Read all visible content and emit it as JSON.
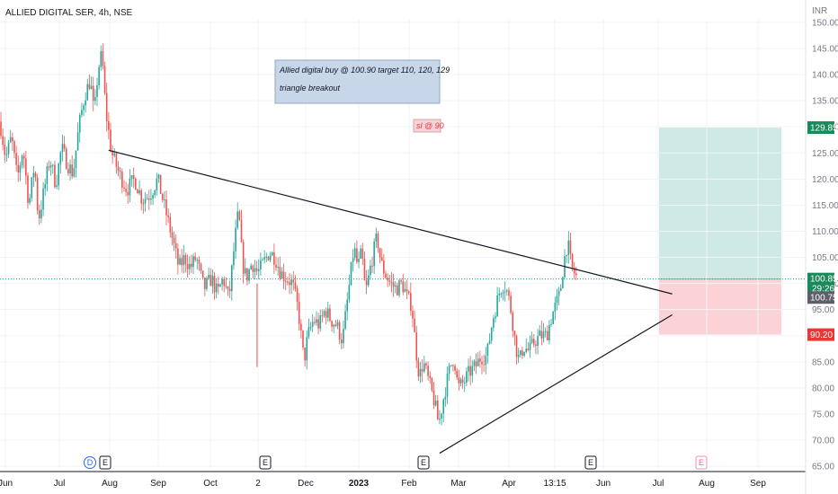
{
  "symbol_title": "ALLIED DIGITAL SER, 4h, NSE",
  "currency": "INR",
  "colors": {
    "up": "#26a69a",
    "down": "#ef5350",
    "trendline": "#131722",
    "target_zone": "#cfe9e5",
    "stop_zone": "#fbd3d6",
    "note_bg": "#c8d6ea",
    "note_border": "#8fa8c8",
    "tag_target": "#1b8a5a",
    "tag_stop": "#e53935",
    "tag_price": "#1b8a5a",
    "tag_close": "#5d606b"
  },
  "chart_data": {
    "type": "candlestick",
    "interval": "4h",
    "ylim": [
      65,
      150
    ],
    "y_ticks": [
      65,
      70,
      75,
      80,
      85,
      90,
      95,
      100,
      105,
      110,
      115,
      120,
      125,
      130,
      135,
      140,
      145,
      150
    ],
    "y_tick_labels": [
      "65.00",
      "70.00",
      "75.00",
      "80.00",
      "85.00",
      "90.00",
      "95.00",
      "100.00",
      "105.00",
      "110.00",
      "115.00",
      "120.00",
      "125.00",
      "130.00",
      "135.00",
      "140.00",
      "145.00",
      "150.00"
    ],
    "x_tick_labels": [
      "Jun",
      "Jul",
      "Aug",
      "Sep",
      "Oct",
      "2",
      "Dec",
      "2023",
      "Feb",
      "Mar",
      "Apr",
      "13:15",
      "Jun",
      "Jul",
      "Aug",
      "Sep"
    ],
    "x_tick_bold": [
      false,
      false,
      false,
      false,
      false,
      false,
      false,
      true,
      false,
      false,
      false,
      false,
      false,
      false,
      false,
      false
    ],
    "price_path": [
      [
        0,
        131
      ],
      [
        3,
        124
      ],
      [
        6,
        128
      ],
      [
        9,
        120
      ],
      [
        12,
        126
      ],
      [
        15,
        115
      ],
      [
        18,
        123
      ],
      [
        20,
        112
      ],
      [
        23,
        118
      ],
      [
        26,
        124
      ],
      [
        29,
        119
      ],
      [
        32,
        126
      ],
      [
        35,
        123
      ],
      [
        38,
        121
      ],
      [
        41,
        130
      ],
      [
        44,
        136
      ],
      [
        47,
        139
      ],
      [
        49,
        132
      ],
      [
        51,
        141
      ],
      [
        53,
        144
      ],
      [
        55,
        133
      ],
      [
        58,
        125
      ],
      [
        62,
        121
      ],
      [
        66,
        118
      ],
      [
        70,
        120
      ],
      [
        74,
        116
      ],
      [
        78,
        117
      ],
      [
        82,
        120
      ],
      [
        86,
        114
      ],
      [
        90,
        108
      ],
      [
        93,
        103
      ],
      [
        96,
        105
      ],
      [
        99,
        103
      ],
      [
        102,
        105
      ],
      [
        106,
        99
      ],
      [
        110,
        101
      ],
      [
        113,
        98
      ],
      [
        116,
        101
      ],
      [
        119,
        97
      ],
      [
        122,
        108
      ],
      [
        124,
        114
      ],
      [
        126,
        104
      ],
      [
        128,
        101
      ],
      [
        131,
        104
      ],
      [
        134,
        102
      ],
      [
        137,
        104
      ],
      [
        140,
        106
      ],
      [
        143,
        105
      ],
      [
        146,
        102
      ],
      [
        149,
        101
      ],
      [
        152,
        100
      ],
      [
        155,
        95
      ],
      [
        158,
        85
      ],
      [
        160,
        90
      ],
      [
        163,
        93
      ],
      [
        166,
        92
      ],
      [
        169,
        95
      ],
      [
        172,
        93
      ],
      [
        175,
        92
      ],
      [
        178,
        89
      ],
      [
        180,
        95
      ],
      [
        182,
        101
      ],
      [
        184,
        107
      ],
      [
        186,
        103
      ],
      [
        188,
        106
      ],
      [
        190,
        98
      ],
      [
        193,
        104
      ],
      [
        196,
        109
      ],
      [
        198,
        104
      ],
      [
        200,
        102
      ],
      [
        203,
        100
      ],
      [
        206,
        99
      ],
      [
        209,
        100
      ],
      [
        212,
        97
      ],
      [
        214,
        96
      ],
      [
        216,
        88
      ],
      [
        218,
        82
      ],
      [
        220,
        85
      ],
      [
        223,
        81
      ],
      [
        226,
        77
      ],
      [
        228,
        73
      ],
      [
        231,
        79
      ],
      [
        234,
        84
      ],
      [
        236,
        86
      ],
      [
        238,
        80
      ],
      [
        241,
        81
      ],
      [
        244,
        83
      ],
      [
        247,
        84
      ],
      [
        250,
        86
      ],
      [
        253,
        86
      ],
      [
        256,
        93
      ],
      [
        258,
        96
      ],
      [
        260,
        99
      ],
      [
        262,
        100
      ],
      [
        264,
        98
      ],
      [
        266,
        94
      ],
      [
        268,
        88
      ],
      [
        270,
        85
      ],
      [
        272,
        88
      ],
      [
        275,
        87
      ],
      [
        278,
        89
      ],
      [
        281,
        90
      ],
      [
        284,
        90
      ],
      [
        287,
        94
      ],
      [
        289,
        96
      ],
      [
        291,
        98
      ],
      [
        293,
        104
      ],
      [
        295,
        108
      ],
      [
        297,
        103
      ],
      [
        300,
        101
      ]
    ],
    "candle_count": 300,
    "trendlines": [
      {
        "name": "descending",
        "x1": 56,
        "y1": 125.5,
        "x2": 333,
        "y2": 98.0
      },
      {
        "name": "ascending",
        "x1": 228,
        "y1": 67.5,
        "x2": 333,
        "y2": 94.0
      }
    ],
    "position": {
      "entry": 100.85,
      "target": 129.85,
      "stop": 90.2
    },
    "last_price": 100.85,
    "countdown": "29:26",
    "close_price": 100.75,
    "price_tags": [
      {
        "label": "129.85",
        "value": 129.85,
        "kind": "target"
      },
      {
        "label": "100.85",
        "value": 100.85,
        "kind": "price"
      },
      {
        "label": "100.75",
        "value": 100.75,
        "kind": "close"
      },
      {
        "label": "90.20",
        "value": 90.2,
        "kind": "stop"
      }
    ],
    "wick_spike": {
      "index": 128,
      "low": 84,
      "high": 100
    },
    "annotations": [
      {
        "text": "Allied digital buy @ 100.90  target 110, 120, 129",
        "kind": "note"
      },
      {
        "text": "triangle breakout",
        "kind": "note"
      },
      {
        "text": "sl @ 90",
        "kind": "stop"
      }
    ],
    "events": [
      {
        "label": "D",
        "style": "dividend"
      },
      {
        "label": "E",
        "style": "earnings"
      },
      {
        "label": "E",
        "style": "earnings"
      },
      {
        "label": "E",
        "style": "earnings"
      },
      {
        "label": "E",
        "style": "earnings"
      },
      {
        "label": "E",
        "style": "earnings-future"
      }
    ]
  }
}
